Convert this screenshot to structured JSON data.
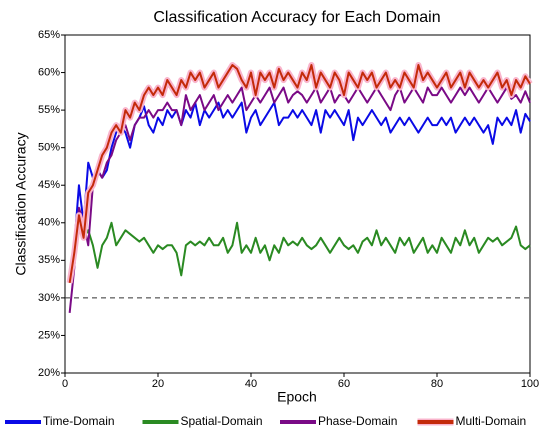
{
  "chart_data": {
    "type": "line",
    "title": "Classification Accuracy for Each Domain",
    "x_label": "Epoch",
    "y_label": "Classification Accuracy",
    "xlim": [
      0,
      100
    ],
    "xticks": [
      0,
      20,
      40,
      60,
      80,
      100
    ],
    "ylim": [
      20,
      65
    ],
    "yticks": [
      {
        "value": 20,
        "label": "20%"
      },
      {
        "value": 25,
        "label": "25%"
      },
      {
        "value": 30,
        "label": "30%"
      },
      {
        "value": 35,
        "label": "35%"
      },
      {
        "value": 40,
        "label": "40%"
      },
      {
        "value": 45,
        "label": "45%"
      },
      {
        "value": 50,
        "label": "50%"
      },
      {
        "value": 55,
        "label": "55%"
      },
      {
        "value": 60,
        "label": "60%"
      },
      {
        "value": 65,
        "label": "65%"
      }
    ],
    "hline": 30,
    "legend": "bottom",
    "x": [
      1,
      2,
      3,
      4,
      5,
      6,
      7,
      8,
      9,
      10,
      11,
      12,
      13,
      14,
      15,
      16,
      17,
      18,
      19,
      20,
      21,
      22,
      23,
      24,
      25,
      26,
      27,
      28,
      29,
      30,
      31,
      32,
      33,
      34,
      35,
      36,
      37,
      38,
      39,
      40,
      41,
      42,
      43,
      44,
      45,
      46,
      47,
      48,
      49,
      50,
      51,
      52,
      53,
      54,
      55,
      56,
      57,
      58,
      59,
      60,
      61,
      62,
      63,
      64,
      65,
      66,
      67,
      68,
      69,
      70,
      71,
      72,
      73,
      74,
      75,
      76,
      77,
      78,
      79,
      80,
      81,
      82,
      83,
      84,
      85,
      86,
      87,
      88,
      89,
      90,
      91,
      92,
      93,
      94,
      95,
      96,
      97,
      98,
      99,
      100
    ],
    "series": [
      {
        "name": "Time-Domain",
        "color": "#0a0ae6",
        "values": [
          33,
          37,
          45,
          40,
          48,
          46,
          47,
          46,
          47,
          50,
          52,
          53,
          52,
          50,
          53,
          54,
          55.5,
          53,
          52,
          54,
          53,
          55,
          54,
          55,
          53,
          55,
          54,
          56,
          53,
          55,
          54,
          55,
          56,
          54,
          55,
          54,
          55,
          56,
          52,
          54,
          55,
          53,
          54,
          55,
          56,
          53,
          54,
          54,
          55,
          54,
          55,
          54,
          53,
          55,
          52,
          55,
          54,
          55,
          54,
          53,
          55,
          51,
          54,
          53,
          54,
          55,
          54,
          53,
          54,
          52,
          53,
          54,
          53,
          54,
          53,
          52,
          53,
          54,
          53,
          53,
          54,
          53,
          54,
          52,
          53,
          54,
          53,
          54,
          53,
          52,
          53,
          50.5,
          54,
          53,
          54,
          53,
          55,
          52,
          54.5,
          53.5
        ]
      },
      {
        "name": "Spatial-Domain",
        "color": "#2a8a22",
        "values": [
          33,
          36,
          39,
          38,
          39,
          37,
          34,
          37,
          38,
          40,
          37,
          38,
          39,
          38.5,
          38,
          37.5,
          38,
          37,
          36,
          37,
          36.5,
          37,
          37,
          36,
          33,
          37,
          37.5,
          37,
          37.5,
          37,
          38,
          37,
          37,
          38,
          36,
          37,
          40,
          36,
          37,
          36,
          38,
          36,
          37,
          35,
          37,
          36,
          38,
          37,
          37.5,
          37,
          38,
          37,
          36.5,
          37,
          38,
          37,
          36,
          37,
          38,
          37,
          36.5,
          37,
          36,
          37.5,
          38,
          37,
          39,
          37,
          38,
          37,
          36,
          38,
          37,
          38,
          36,
          37,
          38,
          36,
          37,
          36,
          38,
          37,
          36,
          38,
          37,
          39,
          37,
          38,
          36,
          37,
          38,
          37.5,
          38,
          37,
          37.5,
          38,
          39.5,
          37,
          36.5,
          37
        ]
      },
      {
        "name": "Phase-Domain",
        "color": "#7a0a86",
        "values": [
          28,
          34,
          42,
          40,
          37,
          45,
          47,
          46,
          48,
          49,
          51,
          52,
          53,
          51,
          53,
          54,
          54,
          55,
          54,
          55,
          55,
          56,
          55,
          55,
          53,
          57,
          55,
          56,
          57,
          55,
          56,
          57,
          55,
          56,
          57,
          56,
          57,
          58,
          55,
          56,
          57,
          56,
          57,
          58,
          56,
          57,
          58,
          56,
          57,
          57.5,
          57,
          56,
          57,
          58,
          56,
          57,
          58,
          56,
          57,
          57,
          56,
          57,
          58,
          57,
          56,
          57,
          58,
          57,
          56,
          55,
          57,
          58,
          56,
          57,
          58,
          57,
          56,
          58,
          57,
          57,
          58,
          57,
          56,
          57,
          58,
          57,
          58,
          57,
          56,
          57,
          58,
          57,
          56,
          57,
          58,
          56.5,
          57,
          56,
          57.5,
          56
        ]
      },
      {
        "name": "Multi-Domain",
        "color": "#c42a0a",
        "halo": "#f9b4cc",
        "values": [
          32,
          36,
          41,
          38,
          44,
          45,
          47,
          49,
          50,
          52,
          53,
          52,
          55,
          54,
          56,
          55,
          57,
          58,
          57,
          58,
          57,
          59,
          58,
          57,
          59,
          58,
          60,
          59,
          60,
          58,
          59,
          60,
          58,
          59,
          60,
          61,
          60.5,
          59,
          58,
          60,
          57,
          60,
          59,
          60,
          58,
          60.5,
          59,
          60,
          59,
          58,
          60,
          59,
          61,
          58,
          60,
          59,
          58,
          60,
          59,
          57,
          60,
          59,
          58,
          60,
          59,
          60,
          58,
          59,
          60,
          58,
          59,
          58,
          60,
          59,
          58,
          61,
          59,
          60,
          59,
          58,
          59,
          60,
          58,
          59,
          60,
          58,
          60,
          59,
          58,
          59,
          58,
          59,
          60,
          58,
          59,
          57,
          59,
          58,
          59.5,
          58.5
        ]
      }
    ]
  }
}
